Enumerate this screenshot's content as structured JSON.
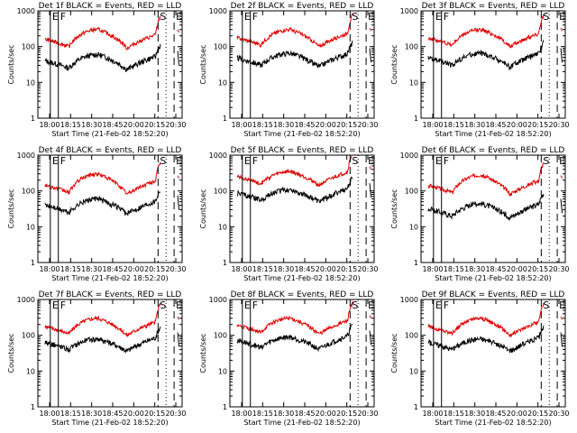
{
  "chart_data": [
    {
      "type": "line",
      "title": "Det 1f BLACK = Events, RED = LLD",
      "profile": 0,
      "xlabel": "Start Time (21-Feb-02 18:52:20)",
      "ylabel": "Counts/sec",
      "ylim": [
        1,
        1000
      ],
      "yscale": "log",
      "xlim": [
        "17:50",
        "20:32"
      ],
      "x_ticks": [
        "18:00",
        "18:15",
        "18:30",
        "18:45",
        "20:00",
        "20:15",
        "20:30"
      ],
      "y_ticks": [
        "1",
        "10",
        "100",
        "1000"
      ],
      "markers": [
        "E",
        "F",
        "S",
        "E"
      ],
      "series": [
        {
          "name": "Events",
          "color": "#000000",
          "level_at_1815": 25,
          "peak_at_1858": 60
        },
        {
          "name": "LLD",
          "color": "#e00000",
          "level_at_1815": 100,
          "peak_at_1858": 300
        }
      ]
    },
    {
      "type": "line",
      "title": "Det 2f BLACK = Events, RED = LLD",
      "profile": 1,
      "xlabel": "Start Time (21-Feb-02 18:52:20)",
      "ylabel": "Counts/sec",
      "ylim": [
        1,
        1000
      ],
      "yscale": "log",
      "xlim": [
        "17:50",
        "20:32"
      ],
      "x_ticks": [
        "18:00",
        "18:15",
        "18:30",
        "18:45",
        "20:00",
        "20:15",
        "20:30"
      ],
      "y_ticks": [
        "1",
        "10",
        "100",
        "1000"
      ],
      "markers": [
        "E",
        "F",
        "S",
        "E"
      ],
      "series": [
        {
          "name": "Events",
          "color": "#000000",
          "level_at_1815": 30,
          "peak_at_1858": 65
        },
        {
          "name": "LLD",
          "color": "#e00000",
          "level_at_1815": 110,
          "peak_at_1858": 300
        }
      ]
    },
    {
      "type": "line",
      "title": "Det 3f BLACK = Events, RED = LLD",
      "profile": 2,
      "xlabel": "Start Time (21-Feb-02 18:52:20)",
      "ylabel": "Counts/sec",
      "ylim": [
        1,
        1000
      ],
      "yscale": "log",
      "xlim": [
        "17:50",
        "20:32"
      ],
      "x_ticks": [
        "18:00",
        "18:15",
        "18:30",
        "18:45",
        "20:00",
        "20:15",
        "20:30"
      ],
      "y_ticks": [
        "1",
        "10",
        "100",
        "1000"
      ],
      "markers": [
        "E",
        "F",
        "S",
        "E"
      ],
      "series": [
        {
          "name": "Events",
          "color": "#000000",
          "level_at_1815": 30,
          "peak_at_1858": 65
        },
        {
          "name": "LLD",
          "color": "#e00000",
          "level_at_1815": 110,
          "peak_at_1858": 300
        }
      ]
    },
    {
      "type": "line",
      "title": "Det 4f BLACK = Events, RED = LLD",
      "profile": 3,
      "xlabel": "Start Time (21-Feb-02 18:52:20)",
      "ylabel": "Counts/sec",
      "ylim": [
        1,
        1000
      ],
      "yscale": "log",
      "xlim": [
        "17:50",
        "20:32"
      ],
      "x_ticks": [
        "18:00",
        "18:15",
        "18:30",
        "18:45",
        "20:00",
        "20:15",
        "20:30"
      ],
      "y_ticks": [
        "1",
        "10",
        "100",
        "1000"
      ],
      "markers": [
        "E",
        "F",
        "S",
        "E"
      ],
      "series": [
        {
          "name": "Events",
          "color": "#000000",
          "level_at_1815": 25,
          "peak_at_1858": 60
        },
        {
          "name": "LLD",
          "color": "#e00000",
          "level_at_1815": 90,
          "peak_at_1858": 300
        }
      ]
    },
    {
      "type": "line",
      "title": "Det 5f BLACK = Events, RED = LLD",
      "profile": 4,
      "xlabel": "Start Time (21-Feb-02 18:52:20)",
      "ylabel": "Counts/sec",
      "ylim": [
        1,
        1000
      ],
      "yscale": "log",
      "xlim": [
        "17:50",
        "20:32"
      ],
      "x_ticks": [
        "18:00",
        "18:15",
        "18:30",
        "18:45",
        "20:00",
        "20:15",
        "20:30"
      ],
      "y_ticks": [
        "1",
        "10",
        "100",
        "1000"
      ],
      "markers": [
        "E",
        "F",
        "S",
        "E"
      ],
      "series": [
        {
          "name": "Events",
          "color": "#000000",
          "level_at_1815": 55,
          "peak_at_1858": 110
        },
        {
          "name": "LLD",
          "color": "#e00000",
          "level_at_1815": 160,
          "peak_at_1858": 350
        }
      ]
    },
    {
      "type": "line",
      "title": "Det 6f BLACK = Events, RED = LLD",
      "profile": 5,
      "xlabel": "Start Time (21-Feb-02 18:52:20)",
      "ylabel": "Counts/sec",
      "ylim": [
        1,
        1000
      ],
      "yscale": "log",
      "xlim": [
        "17:50",
        "20:32"
      ],
      "x_ticks": [
        "18:00",
        "18:15",
        "18:30",
        "18:45",
        "20:00",
        "20:15",
        "20:30"
      ],
      "y_ticks": [
        "1",
        "10",
        "100",
        "1000"
      ],
      "markers": [
        "E",
        "F",
        "S",
        "E"
      ],
      "series": [
        {
          "name": "Events",
          "color": "#000000",
          "level_at_1815": 20,
          "peak_at_1858": 45
        },
        {
          "name": "LLD",
          "color": "#e00000",
          "level_at_1815": 90,
          "peak_at_1858": 280
        }
      ]
    },
    {
      "type": "line",
      "title": "Det 7f BLACK = Events, RED = LLD",
      "profile": 6,
      "xlabel": "Start Time (21-Feb-02 18:52:20)",
      "ylabel": "Counts/sec",
      "ylim": [
        1,
        1000
      ],
      "yscale": "log",
      "xlim": [
        "17:50",
        "20:32"
      ],
      "x_ticks": [
        "18:00",
        "18:15",
        "18:30",
        "18:45",
        "20:00",
        "20:15",
        "20:30"
      ],
      "y_ticks": [
        "1",
        "10",
        "100",
        "1000"
      ],
      "markers": [
        "E",
        "F",
        "S",
        "E"
      ],
      "series": [
        {
          "name": "Events",
          "color": "#000000",
          "level_at_1815": 40,
          "peak_at_1858": 80
        },
        {
          "name": "LLD",
          "color": "#e00000",
          "level_at_1815": 110,
          "peak_at_1858": 300
        }
      ]
    },
    {
      "type": "line",
      "title": "Det 8f BLACK = Events, RED = LLD",
      "profile": 7,
      "xlabel": "Start Time (21-Feb-02 18:52:20)",
      "ylabel": "Counts/sec",
      "ylim": [
        1,
        1000
      ],
      "yscale": "log",
      "xlim": [
        "17:50",
        "20:32"
      ],
      "x_ticks": [
        "18:00",
        "18:15",
        "18:30",
        "18:45",
        "20:00",
        "20:15",
        "20:30"
      ],
      "y_ticks": [
        "1",
        "10",
        "100",
        "1000"
      ],
      "markers": [
        "E",
        "F",
        "S",
        "E"
      ],
      "series": [
        {
          "name": "Events",
          "color": "#000000",
          "level_at_1815": 45,
          "peak_at_1858": 90
        },
        {
          "name": "LLD",
          "color": "#e00000",
          "level_at_1815": 120,
          "peak_at_1858": 300
        }
      ]
    },
    {
      "type": "line",
      "title": "Det 9f BLACK = Events, RED = LLD",
      "profile": 8,
      "xlabel": "Start Time (21-Feb-02 18:52:20)",
      "ylabel": "Counts/sec",
      "ylim": [
        1,
        1000
      ],
      "yscale": "log",
      "xlim": [
        "17:50",
        "20:32"
      ],
      "x_ticks": [
        "18:00",
        "18:15",
        "18:30",
        "18:45",
        "20:00",
        "20:15",
        "20:30"
      ],
      "y_ticks": [
        "1",
        "10",
        "100",
        "1000"
      ],
      "markers": [
        "E",
        "F",
        "S",
        "E"
      ],
      "series": [
        {
          "name": "Events",
          "color": "#000000",
          "level_at_1815": 40,
          "peak_at_1858": 80
        },
        {
          "name": "LLD",
          "color": "#e00000",
          "level_at_1815": 110,
          "peak_at_1858": 300
        }
      ]
    }
  ]
}
